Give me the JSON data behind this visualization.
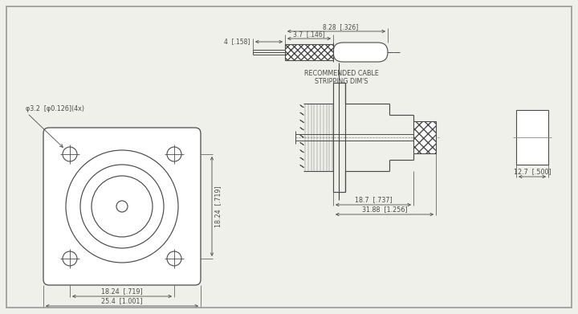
{
  "bg_color": "#f0f0eb",
  "line_color": "#4a4a4a",
  "dim_color": "#4a4a4a",
  "annotations": {
    "cable_strip_label": "RECOMMENDED CABLE\nSTRIPPING DIM'S",
    "dim1": "3.7  [.146]",
    "dim2": "8.28  [.326]",
    "dim3": "4  [.158]",
    "dim4": "φ3.2  [φ0.126](4x)",
    "dim5": "18.24  [.719]",
    "dim6": "18.24  [.719]",
    "dim7": "25.4  [1.001]",
    "dim8": "18.7  [.737]",
    "dim9": "31.88  [1.256]",
    "dim10": "12.7  [.500]"
  }
}
